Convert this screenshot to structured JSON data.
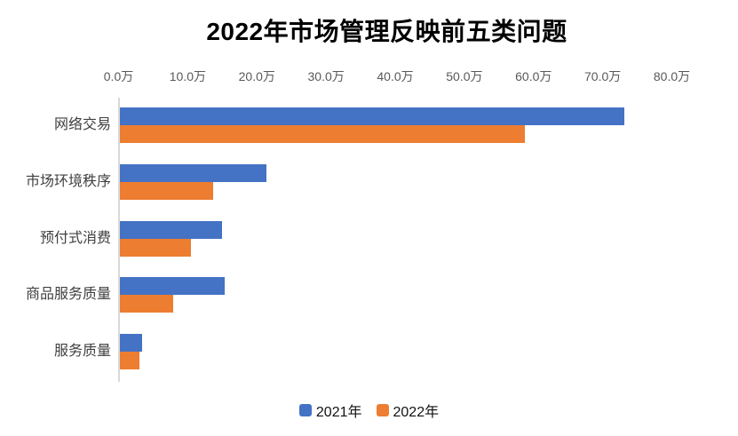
{
  "title": "2022年市场管理反映前五类问题",
  "chart_data": {
    "type": "bar",
    "orientation": "horizontal",
    "title": "2022年市场管理反映前五类问题",
    "categories": [
      "网络交易",
      "市场环境秩序",
      "预付式消费",
      "商品服务质量",
      "服务质量"
    ],
    "series": [
      {
        "name": "2021年",
        "color": "#4472C4",
        "values": [
          73.0,
          21.2,
          14.8,
          15.1,
          3.2
        ]
      },
      {
        "name": "2022年",
        "color": "#ED7D31",
        "values": [
          58.5,
          13.5,
          10.3,
          7.7,
          2.8
        ]
      }
    ],
    "value_axis": {
      "position": "top",
      "min": 0,
      "max": 80,
      "step": 10,
      "unit": "万",
      "tick_labels": [
        "0.0万",
        "10.0万",
        "20.0万",
        "30.0万",
        "40.0万",
        "50.0万",
        "60.0万",
        "70.0万",
        "80.0万"
      ]
    },
    "category_axis": {
      "position": "left"
    },
    "legend_position": "bottom",
    "grid": false,
    "colors": {
      "axis_line": "#d9d9d9",
      "tick_text": "#595959",
      "category_text": "#404040",
      "title_text": "#000000"
    }
  }
}
